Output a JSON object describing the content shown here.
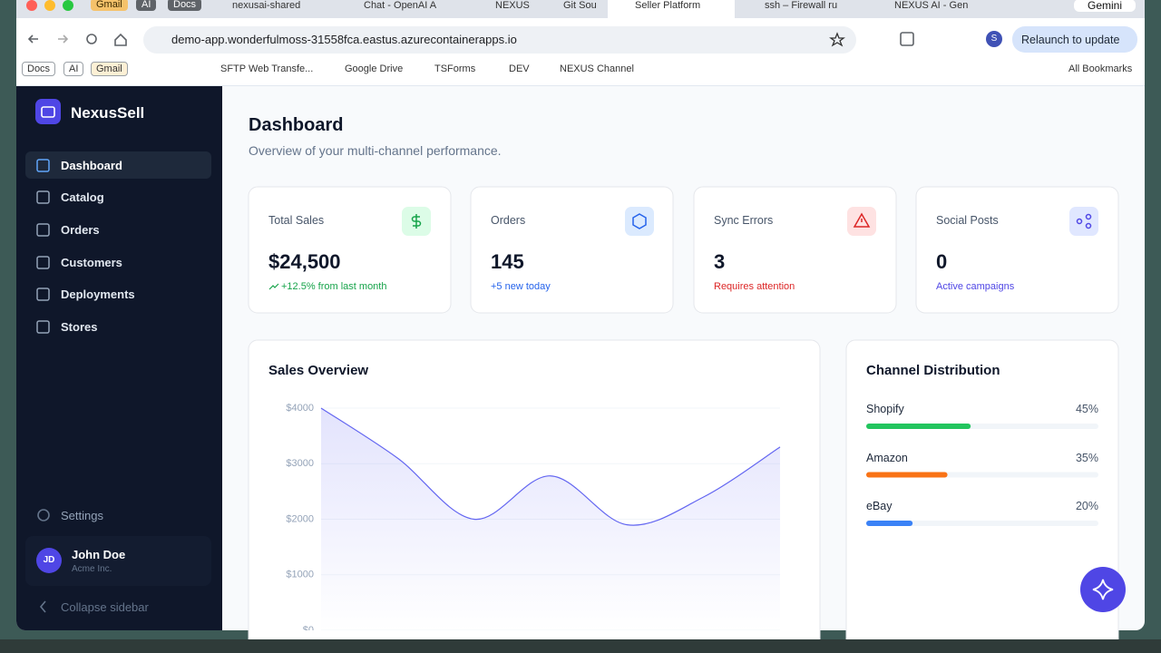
{
  "browser": {
    "tab_groups": [
      "Gmail",
      "AI",
      "Docs"
    ],
    "tabs": [
      "nexusai-shared",
      "Chat - OpenAI A",
      "NEXUS",
      "Git Sou",
      "Seller Platform",
      "ssh – Firewall ru",
      "NEXUS AI - Gen"
    ],
    "gemini": "Gemini",
    "url": "demo-app.wonderfulmoss-31558fca.eastus.azurecontainerapps.io",
    "profile": "S",
    "relaunch": "Relaunch to update",
    "bookmark_groups": [
      "Docs",
      "AI",
      "Gmail"
    ],
    "bookmarks": [
      "SFTP Web Transfe...",
      "Google Drive",
      "TSForms",
      "DEV",
      "NEXUS Channel"
    ],
    "all_bookmarks": "All Bookmarks"
  },
  "sidebar": {
    "brand": "NexusSell",
    "nav": [
      "Dashboard",
      "Catalog",
      "Orders",
      "Customers",
      "Deployments",
      "Stores"
    ],
    "settings": "Settings",
    "user": {
      "initials": "JD",
      "name": "John Doe",
      "org": "Acme Inc."
    },
    "collapse": "Collapse sidebar"
  },
  "header": {
    "title": "Dashboard",
    "subtitle": "Overview of your multi-channel performance."
  },
  "cards": [
    {
      "label": "Total Sales",
      "value": "$24,500",
      "note": "+12.5% from last month"
    },
    {
      "label": "Orders",
      "value": "145",
      "note": "+5 new today"
    },
    {
      "label": "Sync Errors",
      "value": "3",
      "note": "Requires attention"
    },
    {
      "label": "Social Posts",
      "value": "0",
      "note": "Active campaigns"
    }
  ],
  "chart_data": [
    {
      "type": "line",
      "title": "Sales Overview",
      "values": [
        4000,
        3100,
        2000,
        2780,
        1900,
        2400,
        3300
      ],
      "color": "#6366f1",
      "ylim": [
        0,
        4000
      ],
      "yticks": [
        {
          "value": 0,
          "label": "$0"
        },
        {
          "value": 1000,
          "label": "$1000"
        },
        {
          "value": 2000,
          "label": "$2000"
        },
        {
          "value": 3000,
          "label": "$3000"
        },
        {
          "value": 4000,
          "label": "$4000"
        }
      ],
      "grid": true
    },
    {
      "type": "bar",
      "title": "Channel Distribution",
      "categories": [
        "Shopify",
        "Amazon",
        "eBay"
      ],
      "values": [
        45,
        35,
        20
      ],
      "value_labels": [
        "45%",
        "35%",
        "20%"
      ],
      "colors": [
        "#22c55e",
        "#f97316",
        "#3b82f6"
      ],
      "xlim": [
        0,
        100
      ]
    }
  ]
}
